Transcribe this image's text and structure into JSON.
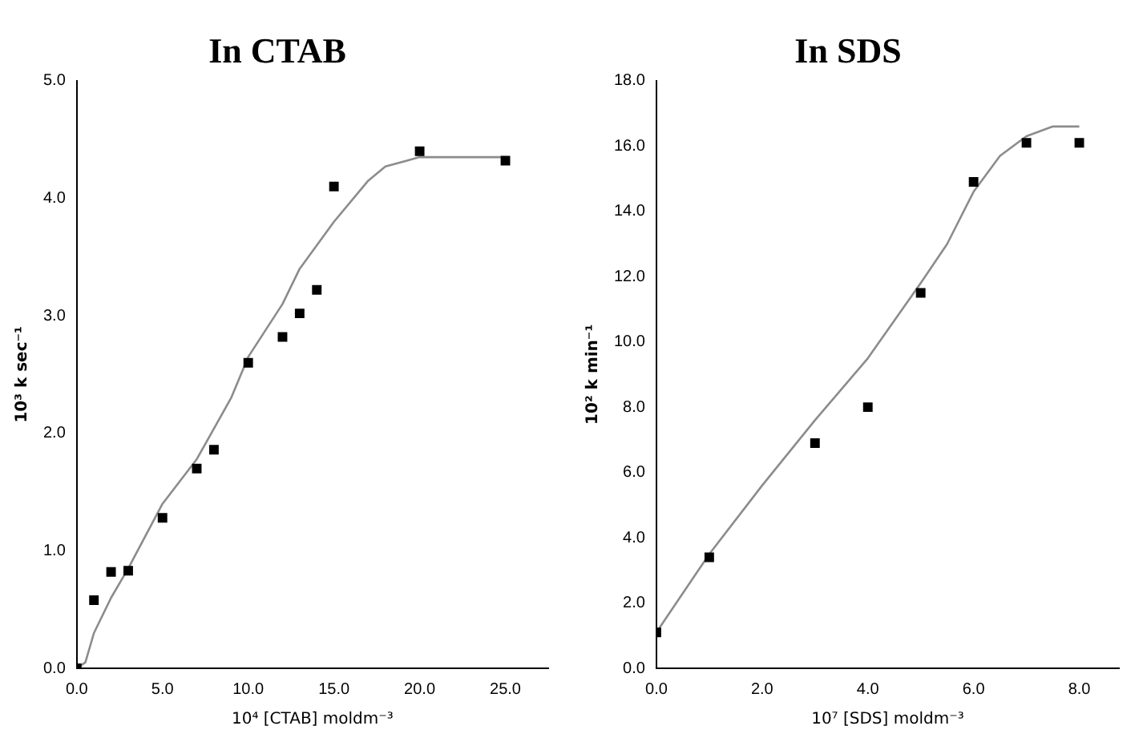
{
  "chart_data": [
    {
      "type": "scatter",
      "title": "In CTAB",
      "xlabel": "10⁴ [CTAB] moldm⁻³",
      "ylabel": "10³ k sec⁻¹",
      "xlim": [
        0,
        27.5
      ],
      "ylim": [
        0,
        5
      ],
      "xticks": [
        {
          "value": 0,
          "label": "0.0"
        },
        {
          "value": 5,
          "label": "5.0"
        },
        {
          "value": 10,
          "label": "10.0"
        },
        {
          "value": 15,
          "label": "15.0"
        },
        {
          "value": 20,
          "label": "20.0"
        },
        {
          "value": 25,
          "label": "25.0"
        }
      ],
      "yticks": [
        {
          "value": 0,
          "label": "0.0"
        },
        {
          "value": 1,
          "label": "1.0"
        },
        {
          "value": 2,
          "label": "2.0"
        },
        {
          "value": 3,
          "label": "3.0"
        },
        {
          "value": 4,
          "label": "4.0"
        },
        {
          "value": 5,
          "label": "5.0"
        }
      ],
      "grid": false,
      "legend": false,
      "marker": "square",
      "series": [
        {
          "type": "scatter",
          "color": "#000000",
          "x": [
            0,
            1,
            2,
            3,
            5,
            7,
            8,
            10,
            12,
            13,
            14,
            15,
            20,
            25
          ],
          "values": [
            0.0,
            0.58,
            0.82,
            0.83,
            1.28,
            1.7,
            1.86,
            2.6,
            2.82,
            3.02,
            3.22,
            4.1,
            4.4,
            4.32
          ]
        },
        {
          "type": "line",
          "marker": "none",
          "line_style": "solid",
          "color": "#8c8c8c",
          "x": [
            0,
            0.5,
            1,
            2,
            3,
            5,
            7,
            9,
            10,
            12,
            13,
            15,
            17,
            18,
            20,
            25
          ],
          "values": [
            0,
            0.05,
            0.3,
            0.6,
            0.85,
            1.4,
            1.78,
            2.3,
            2.65,
            3.1,
            3.4,
            3.8,
            4.15,
            4.27,
            4.35,
            4.35
          ]
        }
      ]
    },
    {
      "type": "scatter",
      "title": "In SDS",
      "xlabel": "10⁷ [SDS] moldm⁻³",
      "ylabel": "10² k min⁻¹",
      "xlim": [
        0,
        8.75
      ],
      "ylim": [
        0,
        18
      ],
      "xticks": [
        {
          "value": 0,
          "label": "0.0"
        },
        {
          "value": 2,
          "label": "2.0"
        },
        {
          "value": 4,
          "label": "4.0"
        },
        {
          "value": 6,
          "label": "6.0"
        },
        {
          "value": 8,
          "label": "8.0"
        }
      ],
      "yticks": [
        {
          "value": 0,
          "label": "0.0"
        },
        {
          "value": 2,
          "label": "2.0"
        },
        {
          "value": 4,
          "label": "4.0"
        },
        {
          "value": 6,
          "label": "6.0"
        },
        {
          "value": 8,
          "label": "8.0"
        },
        {
          "value": 10,
          "label": "10.0"
        },
        {
          "value": 12,
          "label": "12.0"
        },
        {
          "value": 14,
          "label": "14.0"
        },
        {
          "value": 16,
          "label": "16.0"
        },
        {
          "value": 18,
          "label": "18.0"
        }
      ],
      "grid": false,
      "legend": false,
      "marker": "square",
      "series": [
        {
          "type": "scatter",
          "color": "#000000",
          "x": [
            0,
            1,
            3,
            4,
            5,
            6,
            7,
            8
          ],
          "values": [
            1.1,
            3.4,
            6.9,
            8.0,
            11.5,
            14.9,
            16.1,
            16.1
          ]
        },
        {
          "type": "line",
          "marker": "none",
          "line_style": "solid",
          "color": "#8c8c8c",
          "x": [
            0,
            1,
            2,
            3,
            4,
            5,
            5.5,
            6,
            6.5,
            7,
            7.5,
            8
          ],
          "values": [
            1.1,
            3.5,
            5.6,
            7.6,
            9.5,
            11.8,
            13,
            14.6,
            15.7,
            16.3,
            16.6,
            16.6
          ]
        }
      ]
    }
  ]
}
